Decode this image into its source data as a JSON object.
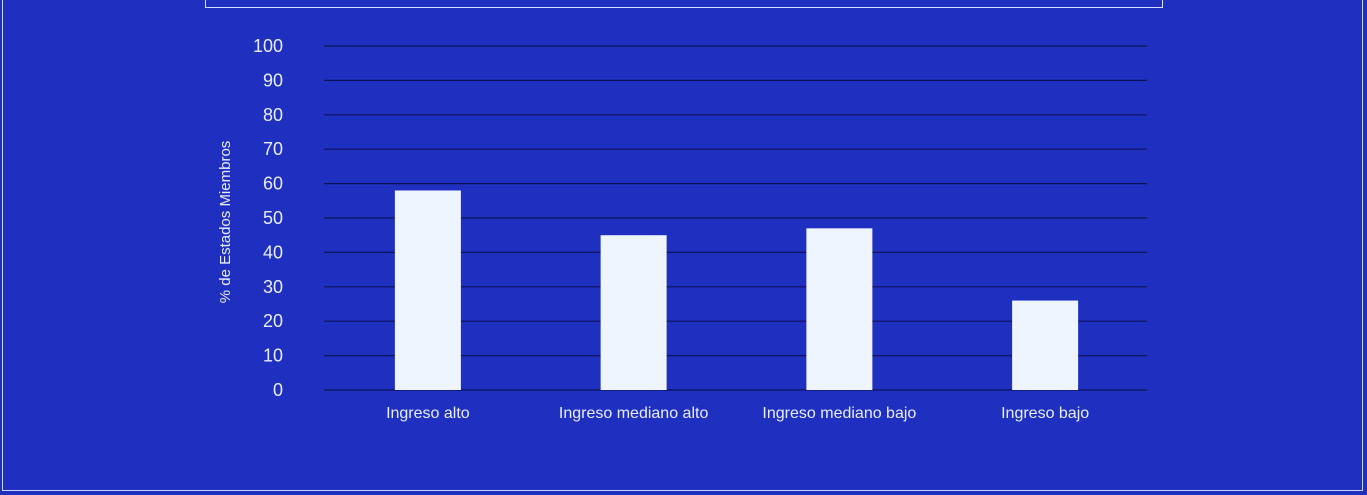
{
  "chart_data": {
    "type": "bar",
    "categories": [
      "Ingreso alto",
      "Ingreso mediano alto",
      "Ingreso mediano bajo",
      "Ingreso bajo"
    ],
    "values": [
      58,
      45,
      47,
      26
    ],
    "title": "",
    "xlabel": "",
    "ylabel": "% de Estados Miembros",
    "ylim": [
      0,
      100
    ],
    "yticks": [
      0,
      10,
      20,
      30,
      40,
      50,
      60,
      70,
      80,
      90,
      100
    ],
    "grid": true,
    "legend": "none"
  },
  "colors": {
    "background": "#1f2fbf",
    "bar": "#eef5ff",
    "gridline": "#0c135a",
    "text": "#e8eeff"
  }
}
